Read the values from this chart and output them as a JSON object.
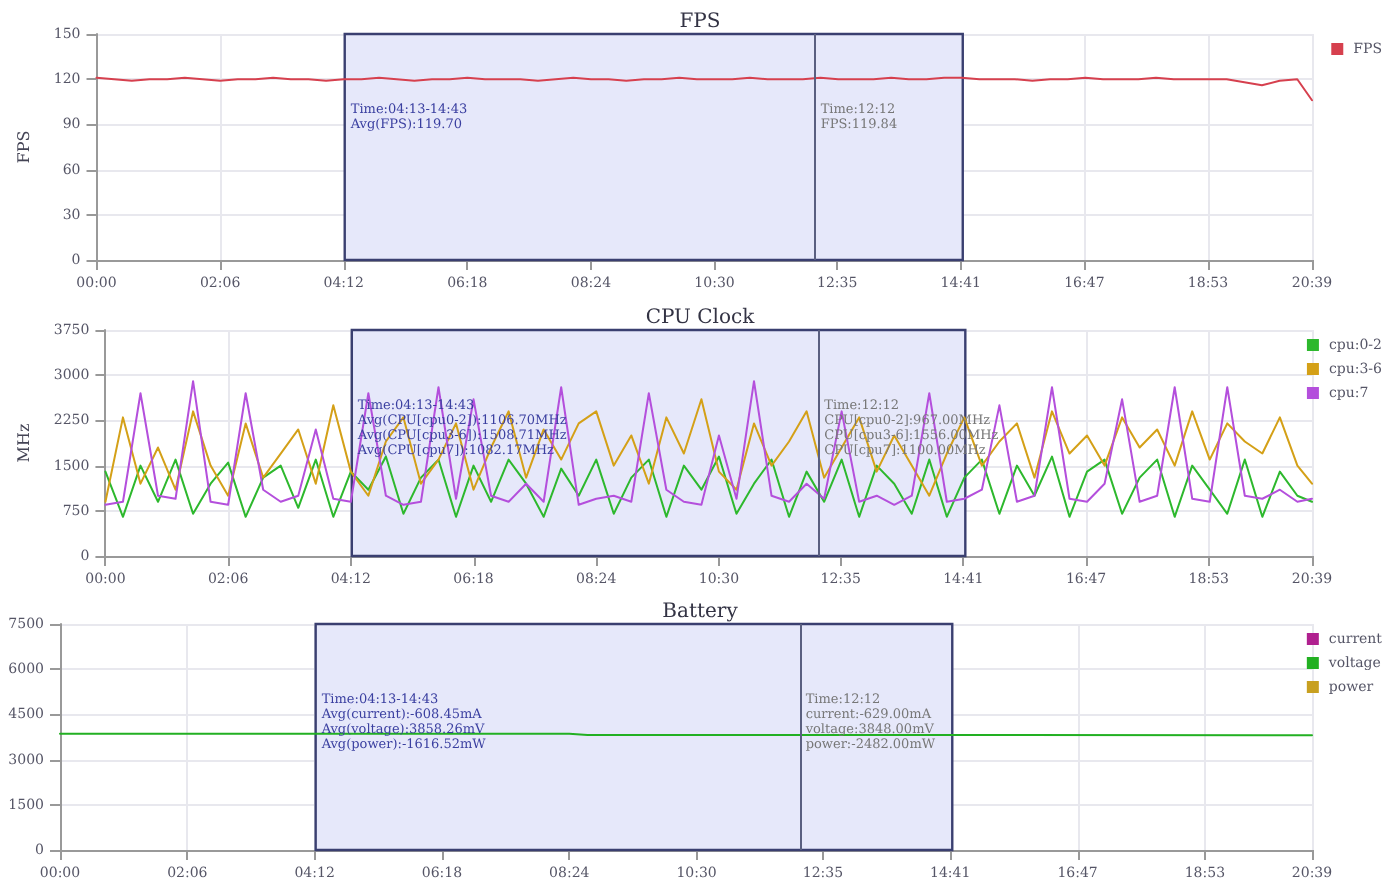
{
  "chart_data": [
    {
      "type": "line",
      "title": "FPS",
      "ylabel": "FPS",
      "x": [
        0,
        0.3,
        0.6,
        0.9,
        1.2,
        1.5,
        1.8,
        2.1,
        2.4,
        2.7,
        3,
        3.3,
        3.6,
        3.9,
        4.2,
        4.5,
        4.8,
        5.1,
        5.4,
        5.7,
        6,
        6.3,
        6.6,
        6.9,
        7.2,
        7.5,
        7.8,
        8.1,
        8.4,
        8.7,
        9,
        9.3,
        9.6,
        9.9,
        10.2,
        10.5,
        10.8,
        11.1,
        11.4,
        11.7,
        12,
        12.3,
        12.6,
        12.9,
        13.2,
        13.5,
        13.8,
        14.1,
        14.4,
        14.7,
        15,
        15.3,
        15.6,
        15.9,
        16.2,
        16.5,
        16.8,
        17.1,
        17.4,
        17.7,
        18,
        18.3,
        18.6,
        18.9,
        19.2,
        19.5,
        19.8,
        20.1,
        20.4,
        20.65
      ],
      "series": [
        {
          "name": "FPS",
          "color": "#d6404e",
          "values": [
            121,
            120,
            119,
            120,
            120,
            121,
            120,
            119,
            120,
            120,
            121,
            120,
            120,
            119,
            120,
            120,
            121,
            120,
            119,
            120,
            120,
            121,
            120,
            120,
            120,
            119,
            120,
            121,
            120,
            120,
            119,
            120,
            120,
            121,
            120,
            120,
            120,
            121,
            120,
            120,
            120,
            121,
            120,
            120,
            120,
            121,
            120,
            120,
            121,
            121,
            120,
            120,
            120,
            119,
            120,
            120,
            121,
            120,
            120,
            120,
            121,
            120,
            120,
            120,
            120,
            118,
            116,
            119,
            120,
            106
          ]
        }
      ],
      "xlim": [
        0,
        20.65
      ],
      "xticks": [
        {
          "value": 0,
          "label": "00:00"
        },
        {
          "value": 2.1,
          "label": "02:06"
        },
        {
          "value": 4.2,
          "label": "04:12"
        },
        {
          "value": 6.3,
          "label": "06:18"
        },
        {
          "value": 8.4,
          "label": "08:24"
        },
        {
          "value": 10.5,
          "label": "10:30"
        },
        {
          "value": 12.5833,
          "label": "12:35"
        },
        {
          "value": 14.6833,
          "label": "14:41"
        },
        {
          "value": 16.7833,
          "label": "16:47"
        },
        {
          "value": 18.8833,
          "label": "18:53"
        },
        {
          "value": 20.65,
          "label": "20:39"
        }
      ],
      "ylim": [
        0,
        150
      ],
      "yticks": [
        0,
        30,
        60,
        90,
        120,
        150
      ],
      "bands": [
        {
          "axis": "x",
          "from": 4.2167,
          "to": 14.7167,
          "label": "Time:04:13-14:43\nAvg(FPS):119.70",
          "color": "#e6e8fa"
        }
      ],
      "ref_lines": [
        {
          "axis": "x",
          "value": 12.2,
          "label": "Time:12:12\nFPS:119.84",
          "color": "#5a5f80"
        }
      ],
      "grid": true,
      "legend": "top right",
      "marker": "none",
      "line_style": "solid"
    },
    {
      "type": "line",
      "title": "CPU Clock",
      "ylabel": "MHz",
      "x": [
        0,
        0.3,
        0.6,
        0.9,
        1.2,
        1.5,
        1.8,
        2.1,
        2.4,
        2.7,
        3,
        3.3,
        3.6,
        3.9,
        4.2,
        4.5,
        4.8,
        5.1,
        5.4,
        5.7,
        6,
        6.3,
        6.6,
        6.9,
        7.2,
        7.5,
        7.8,
        8.1,
        8.4,
        8.7,
        9,
        9.3,
        9.6,
        9.9,
        10.2,
        10.5,
        10.8,
        11.1,
        11.4,
        11.7,
        12,
        12.3,
        12.6,
        12.9,
        13.2,
        13.5,
        13.8,
        14.1,
        14.4,
        14.7,
        15,
        15.3,
        15.6,
        15.9,
        16.2,
        16.5,
        16.8,
        17.1,
        17.4,
        17.7,
        18,
        18.3,
        18.6,
        18.9,
        19.2,
        19.5,
        19.8,
        20.1,
        20.4,
        20.65
      ],
      "series": [
        {
          "name": "cpu:0-2",
          "color": "#2db82d",
          "values": [
            1400,
            650,
            1500,
            900,
            1600,
            700,
            1200,
            1550,
            650,
            1300,
            1500,
            800,
            1600,
            650,
            1400,
            1100,
            1650,
            700,
            1300,
            1600,
            650,
            1500,
            900,
            1600,
            1200,
            650,
            1450,
            1000,
            1600,
            700,
            1300,
            1600,
            650,
            1500,
            1100,
            1650,
            700,
            1200,
            1600,
            650,
            1400,
            900,
            1600,
            650,
            1500,
            1200,
            700,
            1600,
            650,
            1300,
            1600,
            700,
            1500,
            1000,
            1650,
            650,
            1400,
            1600,
            700,
            1300,
            1600,
            650,
            1500,
            1100,
            700,
            1600,
            650,
            1400,
            1000,
            900
          ]
        },
        {
          "name": "cpu:3-6",
          "color": "#d4a017",
          "values": [
            900,
            2300,
            1200,
            1800,
            1100,
            2400,
            1500,
            1000,
            2200,
            1300,
            1700,
            2100,
            1200,
            2500,
            1400,
            1000,
            1900,
            2300,
            1200,
            1600,
            2200,
            1100,
            1800,
            2400,
            1300,
            2100,
            1600,
            2200,
            2400,
            1500,
            2000,
            1200,
            2300,
            1700,
            2600,
            1400,
            1100,
            2200,
            1500,
            1900,
            2400,
            1300,
            1800,
            2300,
            1400,
            2000,
            1500,
            1000,
            1700,
            2300,
            1500,
            1900,
            2200,
            1300,
            2400,
            1700,
            2000,
            1500,
            2300,
            1800,
            2100,
            1500,
            2400,
            1600,
            2200,
            1900,
            1700,
            2300,
            1500,
            1200
          ]
        },
        {
          "name": "cpu:7",
          "color": "#b44fdc",
          "values": [
            850,
            900,
            2700,
            1000,
            950,
            2900,
            900,
            850,
            2700,
            1100,
            900,
            1000,
            2100,
            950,
            900,
            2700,
            1000,
            850,
            900,
            2800,
            950,
            2600,
            1000,
            900,
            1200,
            900,
            2800,
            850,
            950,
            1000,
            900,
            2700,
            1100,
            900,
            850,
            2000,
            950,
            2900,
            1000,
            900,
            1200,
            950,
            2400,
            900,
            1000,
            850,
            1000,
            2700,
            900,
            950,
            1100,
            2500,
            900,
            1000,
            2800,
            950,
            900,
            1200,
            2600,
            900,
            1000,
            2800,
            950,
            900,
            2800,
            1000,
            950,
            1100,
            900,
            950
          ]
        }
      ],
      "xlim": [
        0,
        20.65
      ],
      "xticks": [
        {
          "value": 0,
          "label": "00:00"
        },
        {
          "value": 2.1,
          "label": "02:06"
        },
        {
          "value": 4.2,
          "label": "04:12"
        },
        {
          "value": 6.3,
          "label": "06:18"
        },
        {
          "value": 8.4,
          "label": "08:24"
        },
        {
          "value": 10.5,
          "label": "10:30"
        },
        {
          "value": 12.5833,
          "label": "12:35"
        },
        {
          "value": 14.6833,
          "label": "14:41"
        },
        {
          "value": 16.7833,
          "label": "16:47"
        },
        {
          "value": 18.8833,
          "label": "18:53"
        },
        {
          "value": 20.65,
          "label": "20:39"
        }
      ],
      "ylim": [
        0,
        3750
      ],
      "yticks": [
        0,
        750,
        1500,
        2250,
        3000,
        3750
      ],
      "bands": [
        {
          "axis": "x",
          "from": 4.2167,
          "to": 14.7167,
          "label": "Time:04:13-14:43\nAvg(CPU[cpu0-2]):1106.70MHz\nAvg(CPU[cpu3-6]):1508.71MHz\nAvg(CPU[cpu7]):1082.17MHz",
          "color": "#e6e8fa"
        }
      ],
      "ref_lines": [
        {
          "axis": "x",
          "value": 12.2,
          "label": "Time:12:12\nCPU[cpu0-2]:967.00MHz\nCPU[cpu3-6]:1556.00MHz\nCPU[cpu7]:1100.00MHz",
          "color": "#5a5f80"
        }
      ],
      "grid": true,
      "legend": "top right",
      "marker": "none",
      "line_style": "solid"
    },
    {
      "type": "line",
      "title": "Battery",
      "series": [
        {
          "name": "current",
          "color": "#b0208f"
        },
        {
          "name": "voltage",
          "color": "#22b022",
          "x": [
            0,
            8.4,
            8.7,
            20.65
          ],
          "values": [
            3860,
            3860,
            3820,
            3810
          ]
        },
        {
          "name": "power",
          "color": "#c8a020"
        }
      ],
      "xlim": [
        0,
        20.65
      ],
      "xticks": [
        {
          "value": 0,
          "label": "00:00"
        },
        {
          "value": 2.1,
          "label": "02:06"
        },
        {
          "value": 4.2,
          "label": "04:12"
        },
        {
          "value": 6.3,
          "label": "06:18"
        },
        {
          "value": 8.4,
          "label": "08:24"
        },
        {
          "value": 10.5,
          "label": "10:30"
        },
        {
          "value": 12.5833,
          "label": "12:35"
        },
        {
          "value": 14.6833,
          "label": "14:41"
        },
        {
          "value": 16.7833,
          "label": "16:47"
        },
        {
          "value": 18.8833,
          "label": "18:53"
        },
        {
          "value": 20.65,
          "label": "20:39"
        }
      ],
      "ylim": [
        0,
        7500
      ],
      "yticks": [
        0,
        1500,
        3000,
        4500,
        6000,
        7500
      ],
      "bands": [
        {
          "axis": "x",
          "from": 4.2167,
          "to": 14.7167,
          "label": "Time:04:13-14:43\nAvg(current):-608.45mA\nAvg(voltage):3858.26mV\nAvg(power):-1616.52mW",
          "color": "#e6e8fa"
        }
      ],
      "ref_lines": [
        {
          "axis": "x",
          "value": 12.2,
          "label": "Time:12:12\ncurrent:-629.00mA\nvoltage:3848.00mV\npower:-2482.00mW",
          "color": "#5a5f80"
        }
      ],
      "grid": true,
      "legend": "top right",
      "marker": "none",
      "line_style": "solid"
    }
  ]
}
